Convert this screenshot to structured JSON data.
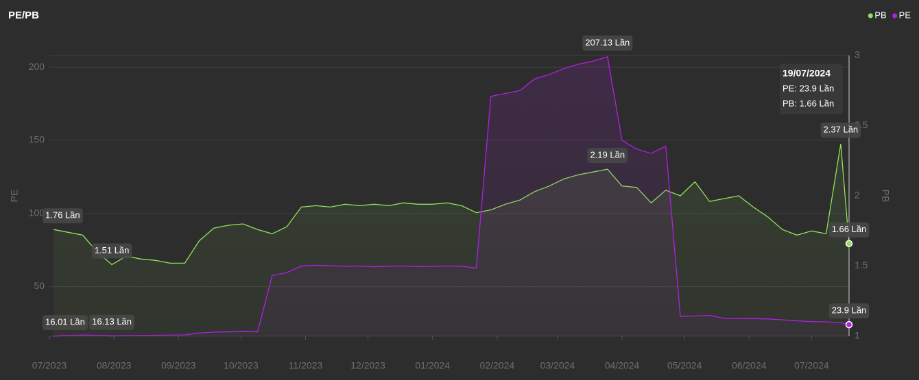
{
  "chart_data": {
    "type": "line",
    "title": "PE/PB",
    "y_label": "PE",
    "y2_label": "PB",
    "legend": "top-right",
    "x": [
      "03/07/2023",
      "10/07/2023",
      "17/07/2023",
      "24/07/2023",
      "31/07/2023",
      "07/08/2023",
      "14/08/2023",
      "21/08/2023",
      "28/08/2023",
      "04/09/2023",
      "11/09/2023",
      "18/09/2023",
      "25/09/2023",
      "02/10/2023",
      "09/10/2023",
      "16/10/2023",
      "23/10/2023",
      "30/10/2023",
      "06/11/2023",
      "13/11/2023",
      "20/11/2023",
      "27/11/2023",
      "04/12/2023",
      "11/12/2023",
      "18/12/2023",
      "25/12/2023",
      "01/01/2024",
      "08/01/2024",
      "15/01/2024",
      "22/01/2024",
      "29/01/2024",
      "05/02/2024",
      "12/02/2024",
      "19/02/2024",
      "26/02/2024",
      "04/03/2024",
      "11/03/2024",
      "18/03/2024",
      "25/03/2024",
      "01/04/2024",
      "08/04/2024",
      "15/04/2024",
      "22/04/2024",
      "29/04/2024",
      "06/05/2024",
      "13/05/2024",
      "20/05/2024",
      "27/05/2024",
      "03/06/2024",
      "10/06/2024",
      "17/06/2024",
      "24/06/2024",
      "01/07/2024",
      "08/07/2024",
      "15/07/2024",
      "19/07/2024"
    ],
    "xlim": [
      "01/07/2023",
      "19/07/2024"
    ],
    "xticks": [
      {
        "value": "01/07/2023",
        "label": "07/2023"
      },
      {
        "value": "01/08/2023",
        "label": "08/2023"
      },
      {
        "value": "01/09/2023",
        "label": "09/2023"
      },
      {
        "value": "01/10/2023",
        "label": "10/2023"
      },
      {
        "value": "01/11/2023",
        "label": "11/2023"
      },
      {
        "value": "01/12/2023",
        "label": "12/2023"
      },
      {
        "value": "01/01/2024",
        "label": "01/2024"
      },
      {
        "value": "01/02/2024",
        "label": "02/2024"
      },
      {
        "value": "01/03/2024",
        "label": "03/2024"
      },
      {
        "value": "01/04/2024",
        "label": "04/2024"
      },
      {
        "value": "01/05/2024",
        "label": "05/2024"
      },
      {
        "value": "01/06/2024",
        "label": "06/2024"
      },
      {
        "value": "01/07/2024",
        "label": "07/2024"
      }
    ],
    "ylim": [
      16,
      208
    ],
    "yticks": [
      50,
      100,
      150,
      200
    ],
    "y2lim": [
      1,
      3
    ],
    "y2ticks": [
      1,
      1.5,
      2,
      2.5,
      3
    ],
    "grid": true,
    "series": [
      {
        "name": "PB",
        "color": "#8fe35a",
        "axis": "y2",
        "values": [
          1.76,
          1.74,
          1.72,
          1.6,
          1.51,
          1.57,
          1.55,
          1.54,
          1.52,
          1.52,
          1.68,
          1.77,
          1.79,
          1.8,
          1.76,
          1.73,
          1.78,
          1.92,
          1.93,
          1.92,
          1.94,
          1.93,
          1.94,
          1.93,
          1.95,
          1.94,
          1.94,
          1.95,
          1.93,
          1.88,
          1.9,
          1.94,
          1.97,
          2.03,
          2.07,
          2.12,
          2.15,
          2.17,
          2.19,
          2.07,
          2.06,
          1.95,
          2.04,
          2.0,
          2.1,
          1.96,
          1.98,
          2.0,
          1.92,
          1.85,
          1.76,
          1.72,
          1.75,
          1.73,
          2.37,
          1.66
        ],
        "value_labels": [
          "1.76 Lần",
          null,
          null,
          null,
          "1.51 Lần",
          null,
          null,
          null,
          null,
          null,
          null,
          null,
          null,
          null,
          null,
          null,
          null,
          null,
          null,
          null,
          null,
          null,
          null,
          null,
          null,
          null,
          null,
          null,
          null,
          null,
          null,
          null,
          null,
          null,
          null,
          null,
          null,
          null,
          "2.19 Lần",
          null,
          null,
          null,
          null,
          null,
          null,
          null,
          null,
          null,
          null,
          null,
          null,
          null,
          null,
          null,
          "2.37 Lần",
          "1.66 Lần"
        ]
      },
      {
        "name": "PE",
        "color": "#b41ee6",
        "values": [
          16.01,
          16.5,
          16.8,
          16.6,
          16.13,
          16.4,
          16.5,
          16.6,
          16.8,
          16.9,
          18.2,
          18.8,
          19.0,
          19.2,
          19.0,
          57.5,
          59.5,
          64.0,
          64.5,
          64.2,
          63.8,
          64.0,
          63.5,
          63.8,
          64.0,
          63.6,
          63.8,
          64.0,
          63.9,
          62.5,
          180,
          182,
          184,
          192,
          195,
          199,
          202,
          204,
          207.13,
          150,
          144,
          141,
          146,
          29.5,
          29.8,
          30.2,
          28.2,
          28.0,
          28.1,
          27.8,
          27.2,
          26.5,
          26.0,
          25.8,
          25.3,
          23.9
        ],
        "value_labels": [
          "16.01 Lần",
          null,
          null,
          null,
          "16.13 Lần",
          null,
          null,
          null,
          null,
          null,
          null,
          null,
          null,
          null,
          null,
          null,
          null,
          null,
          null,
          null,
          null,
          null,
          null,
          null,
          null,
          null,
          null,
          null,
          null,
          null,
          null,
          null,
          null,
          null,
          null,
          null,
          null,
          null,
          "207.13 Lần",
          null,
          null,
          null,
          null,
          null,
          null,
          null,
          null,
          null,
          null,
          null,
          null,
          null,
          null,
          null,
          null,
          "23.9 Lần"
        ]
      }
    ],
    "tooltip": {
      "title": "19/07/2024",
      "lines": [
        "PE: 23.9 Lần",
        "PB: 1.66 Lần"
      ]
    }
  }
}
